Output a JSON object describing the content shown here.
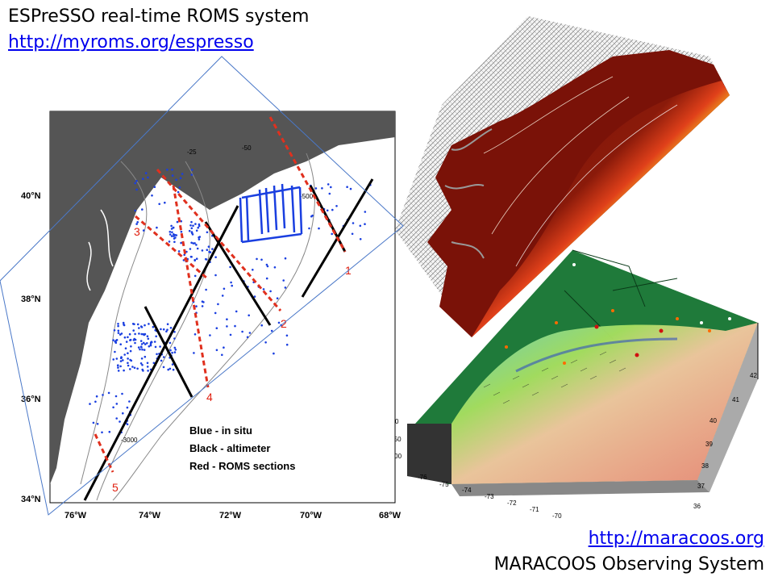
{
  "header": {
    "title": "ESPreSSO real-time ROMS system",
    "link": "http://myroms.org/espresso"
  },
  "footer": {
    "link": "http://maracoos.org",
    "caption": "MARACOOS Observing System"
  },
  "map": {
    "lat_labels": [
      "40°N",
      "38°N",
      "36°N",
      "34°N"
    ],
    "lon_labels": [
      "76°W",
      "74°W",
      "72°W",
      "70°W",
      "68°W"
    ],
    "contour_labels": [
      "-25",
      "-50",
      "-500",
      "-3000"
    ],
    "legend": [
      "Blue - in situ",
      "Black - altimeter",
      "Red - ROMS sections"
    ],
    "section_numbers": [
      "1",
      "2",
      "3",
      "4",
      "5"
    ],
    "colors": {
      "in_situ": "#1a3fe0",
      "altimeter": "#000000",
      "roms": "#e0301e",
      "land": "#555555"
    }
  },
  "box3d": {
    "depth_ticks": [
      "0",
      "-50",
      "-100"
    ],
    "lon_ticks": [
      "-76",
      "-75",
      "-74",
      "-73",
      "-72",
      "-71",
      "-70"
    ],
    "lat_ticks": [
      "36",
      "37",
      "38",
      "39",
      "40",
      "41",
      "42"
    ]
  }
}
